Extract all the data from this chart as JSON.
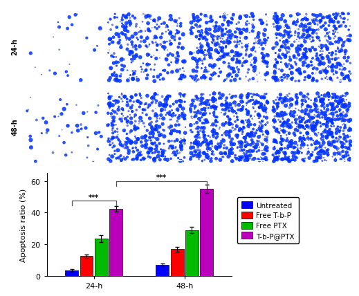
{
  "col_labels": [
    "Untreated",
    "Free T-b-P",
    "Free PTX",
    "T-b-P@PTX"
  ],
  "row_labels": [
    "24-h",
    "48-h"
  ],
  "bar_groups": [
    "24-h",
    "48-h"
  ],
  "bar_colors": [
    "#0000FF",
    "#FF0000",
    "#00BB00",
    "#BB00BB"
  ],
  "legend_labels": [
    "Untreated",
    "Free T-b-P",
    "Free PTX",
    "T-b-P@PTX"
  ],
  "values_24h": [
    3.5,
    12.5,
    23.5,
    42.5
  ],
  "values_48h": [
    7.0,
    17.0,
    29.0,
    55.0
  ],
  "errors_24h": [
    0.8,
    1.2,
    2.2,
    1.8
  ],
  "errors_48h": [
    0.9,
    1.5,
    2.0,
    2.5
  ],
  "ylabel": "Apoptosis ratio (%)",
  "ylim": [
    0,
    65
  ],
  "yticks": [
    0,
    20,
    40,
    60
  ],
  "significance_text": "***",
  "green_strip_color": "#00FF00",
  "label_color_in_panel": "#FFFFFF",
  "bg_color": "#000000",
  "dot_color": "#0000FF",
  "dot_counts_24h": [
    15,
    200,
    280,
    320
  ],
  "dot_counts_48h": [
    30,
    300,
    380,
    450
  ]
}
